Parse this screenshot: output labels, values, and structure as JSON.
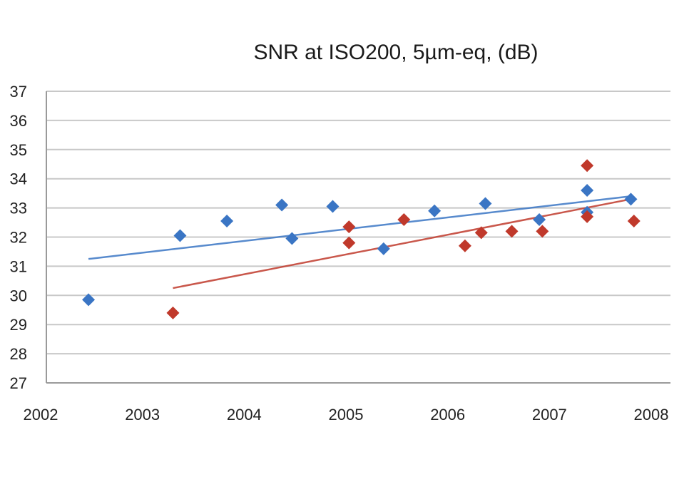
{
  "chart_data": {
    "type": "scatter",
    "title": "SNR at ISO200, 5µm-eq, (dB)",
    "xlabel": "",
    "ylabel": "",
    "xlim": [
      2002,
      2008
    ],
    "ylim": [
      27,
      37
    ],
    "x_ticks": [
      "2002",
      "2003",
      "2004",
      "2005",
      "2006",
      "2007",
      "2008"
    ],
    "y_ticks": [
      "27",
      "28",
      "29",
      "30",
      "31",
      "32",
      "33",
      "34",
      "35",
      "36",
      "37"
    ],
    "grid": true,
    "legend": "none",
    "series": [
      {
        "color": "#3a75c4",
        "marker": "diamond",
        "points": [
          {
            "x": 2002.47,
            "y": 29.85
          },
          {
            "x": 2003.37,
            "y": 32.05
          },
          {
            "x": 2003.83,
            "y": 32.55
          },
          {
            "x": 2004.37,
            "y": 33.1
          },
          {
            "x": 2004.47,
            "y": 31.95
          },
          {
            "x": 2004.87,
            "y": 33.05
          },
          {
            "x": 2005.37,
            "y": 31.6
          },
          {
            "x": 2005.87,
            "y": 32.9
          },
          {
            "x": 2006.37,
            "y": 33.15
          },
          {
            "x": 2006.9,
            "y": 32.6
          },
          {
            "x": 2007.37,
            "y": 33.6
          },
          {
            "x": 2007.37,
            "y": 32.85
          },
          {
            "x": 2007.8,
            "y": 33.3
          }
        ],
        "trendline": {
          "x": [
            2002.47,
            2007.8
          ],
          "y": [
            31.25,
            33.4
          ]
        }
      },
      {
        "color": "#c0392b",
        "marker": "diamond",
        "points": [
          {
            "x": 2003.3,
            "y": 29.4
          },
          {
            "x": 2005.03,
            "y": 32.35
          },
          {
            "x": 2005.03,
            "y": 31.8
          },
          {
            "x": 2005.57,
            "y": 32.6
          },
          {
            "x": 2006.17,
            "y": 31.7
          },
          {
            "x": 2006.33,
            "y": 32.15
          },
          {
            "x": 2006.63,
            "y": 32.2
          },
          {
            "x": 2006.93,
            "y": 32.2
          },
          {
            "x": 2007.37,
            "y": 34.45
          },
          {
            "x": 2007.37,
            "y": 32.7
          },
          {
            "x": 2007.83,
            "y": 32.55
          }
        ],
        "trendline": {
          "x": [
            2003.3,
            2007.8
          ],
          "y": [
            30.25,
            33.3
          ]
        }
      }
    ]
  }
}
